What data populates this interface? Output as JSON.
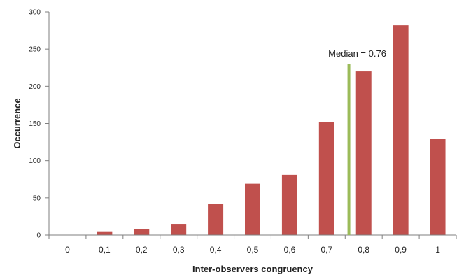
{
  "chart_data": {
    "type": "bar",
    "categories": [
      "0",
      "0,1",
      "0,2",
      "0,3",
      "0,4",
      "0,5",
      "0,6",
      "0,7",
      "0,8",
      "0,9",
      "1"
    ],
    "values": [
      0,
      5,
      8,
      15,
      42,
      69,
      81,
      152,
      220,
      282,
      129
    ],
    "xlabel": "Inter-observers congruency",
    "ylabel": "Occurrence",
    "ylim": [
      0,
      300
    ],
    "yticks": [
      0,
      50,
      100,
      150,
      200,
      250,
      300
    ],
    "ytick_labels": [
      "0",
      "50",
      "100",
      "150",
      "200",
      "250",
      "300"
    ],
    "grid": false,
    "legend": "none",
    "bar_color": "#c0504d",
    "median": {
      "value": 0.76,
      "label": "Median = 0.76",
      "color": "#9bbb59"
    }
  }
}
